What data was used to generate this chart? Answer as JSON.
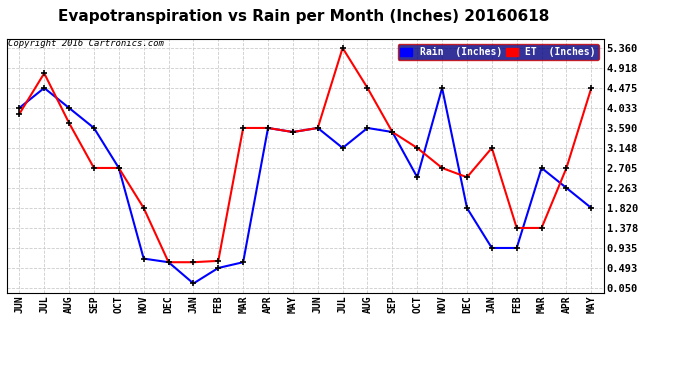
{
  "title": "Evapotranspiration vs Rain per Month (Inches) 20160618",
  "copyright": "Copyright 2016 Cartronics.com",
  "months": [
    "JUN",
    "JUL",
    "AUG",
    "SEP",
    "OCT",
    "NOV",
    "DEC",
    "JAN",
    "FEB",
    "MAR",
    "APR",
    "MAY",
    "JUN",
    "JUL",
    "AUG",
    "SEP",
    "OCT",
    "NOV",
    "DEC",
    "JAN",
    "FEB",
    "MAR",
    "APR",
    "MAY"
  ],
  "rain": [
    4.033,
    4.475,
    4.033,
    3.59,
    2.705,
    0.7,
    0.62,
    0.15,
    0.493,
    0.62,
    3.59,
    3.5,
    3.59,
    3.148,
    3.59,
    3.5,
    2.5,
    4.475,
    1.82,
    0.935,
    0.935,
    2.705,
    2.263,
    1.82
  ],
  "et": [
    3.9,
    4.8,
    3.7,
    2.705,
    2.705,
    1.82,
    0.62,
    0.62,
    0.65,
    3.59,
    3.59,
    3.5,
    3.59,
    5.36,
    4.475,
    3.5,
    3.148,
    2.705,
    2.5,
    3.148,
    1.378,
    1.378,
    2.705,
    4.475
  ],
  "rain_color": "#0000ff",
  "et_color": "#ff0000",
  "marker_color": "#000000",
  "background_color": "#ffffff",
  "grid_color": "#cccccc",
  "yticks": [
    0.05,
    0.493,
    0.935,
    1.378,
    1.82,
    2.263,
    2.705,
    3.148,
    3.59,
    4.033,
    4.475,
    4.918,
    5.36
  ],
  "ytick_labels": [
    "0.050",
    "0.493",
    "0.935",
    "1.378",
    "1.820",
    "2.263",
    "2.705",
    "3.148",
    "3.590",
    "4.033",
    "4.475",
    "4.918",
    "5.360"
  ],
  "ylim": [
    -0.05,
    5.55
  ],
  "title_fontsize": 11,
  "legend_rain_label": "Rain  (Inches)",
  "legend_et_label": "ET  (Inches)"
}
